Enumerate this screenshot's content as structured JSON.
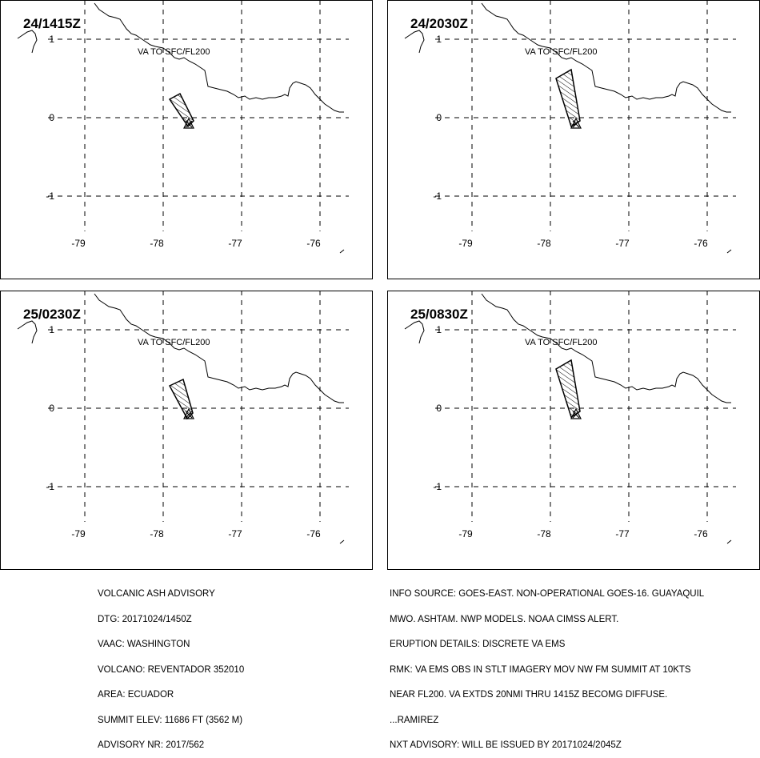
{
  "panels": [
    {
      "time": "24/1415Z",
      "va_label": "VA TO SFC/FL200",
      "plume": "small"
    },
    {
      "time": "24/2030Z",
      "va_label": "VA TO SFC/FL200",
      "plume": "wide"
    },
    {
      "time": "25/0230Z",
      "va_label": "VA TO SFC/FL200",
      "plume": "mid"
    },
    {
      "time": "25/0830Z",
      "va_label": "VA TO SFC/FL200",
      "plume": "wide"
    }
  ],
  "axes": {
    "lat_ticks": [
      "1",
      "0",
      "-1"
    ],
    "lon_ticks": [
      "-79",
      "-78",
      "-77",
      "-76"
    ]
  },
  "advisory_left": [
    "VOLCANIC ASH ADVISORY",
    "DTG: 20171024/1450Z",
    "VAAC: WASHINGTON",
    "VOLCANO: REVENTADOR 352010",
    "AREA: ECUADOR",
    "SUMMIT ELEV: 11686 FT (3562 M)",
    "ADVISORY NR: 2017/562"
  ],
  "advisory_right": [
    "INFO SOURCE: GOES-EAST. NON-OPERATIONAL GOES-16. GUAYAQUIL",
    "MWO. ASHTAM. NWP MODELS. NOAA CIMSS ALERT.",
    "ERUPTION DETAILS: DISCRETE VA EMS",
    "RMK: VA EMS OBS IN STLT IMAGERY MOV NW FM SUMMIT AT 10KTS",
    "NEAR FL200. VA EXTDS 20NMI THRU 1415Z BECOMG DIFFUSE.",
    "...RAMIREZ",
    "NXT ADVISORY: WILL BE ISSUED BY 20171024/2045Z"
  ]
}
